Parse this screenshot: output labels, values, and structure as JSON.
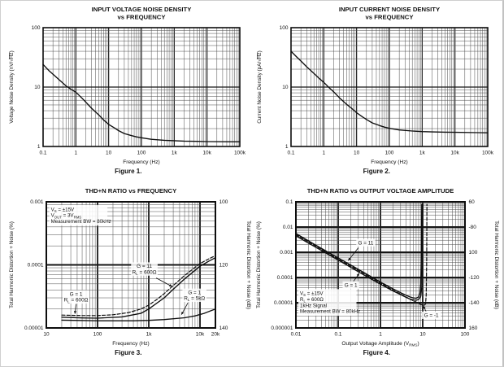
{
  "page": {
    "background": "#ffffff",
    "ink_color": "#111111"
  },
  "chart_data": [
    {
      "type": "line",
      "caption": "Figure 1.",
      "title_lines": [
        "INPUT VOLTAGE NOISE DENSITY",
        "vs FREQUENCY"
      ],
      "xlabel": "Frequency (Hz)",
      "ylabel_left": "Voltage Noise Density (nV/√^Hz^)",
      "x_scale": "log",
      "y_scale": "log",
      "x_min": 0.1,
      "x_max": 100000,
      "y_min": 1,
      "y_max": 100,
      "x_ticks": [
        {
          "v": 0.1,
          "l": "0.1"
        },
        {
          "v": 1,
          "l": "1"
        },
        {
          "v": 10,
          "l": "10"
        },
        {
          "v": 100,
          "l": "100"
        },
        {
          "v": 1000,
          "l": "1k"
        },
        {
          "v": 10000,
          "l": "10k"
        },
        {
          "v": 100000,
          "l": "100k"
        }
      ],
      "y_ticks_left": [
        {
          "v": 1,
          "l": "1"
        },
        {
          "v": 10,
          "l": "10"
        },
        {
          "v": 100,
          "l": "100"
        }
      ],
      "series": [
        {
          "name": "voltage-noise",
          "style": "solid",
          "points": [
            [
              0.1,
              24
            ],
            [
              0.15,
              19
            ],
            [
              0.2,
              16.5
            ],
            [
              0.3,
              13.5
            ],
            [
              0.5,
              10.5
            ],
            [
              0.7,
              9.2
            ],
            [
              1,
              8.2
            ],
            [
              1.5,
              6.6
            ],
            [
              2,
              5.6
            ],
            [
              3,
              4.4
            ],
            [
              5,
              3.4
            ],
            [
              7,
              2.8
            ],
            [
              10,
              2.35
            ],
            [
              15,
              2.05
            ],
            [
              20,
              1.85
            ],
            [
              30,
              1.65
            ],
            [
              50,
              1.52
            ],
            [
              70,
              1.45
            ],
            [
              100,
              1.4
            ],
            [
              200,
              1.32
            ],
            [
              500,
              1.27
            ],
            [
              1000,
              1.25
            ],
            [
              2000,
              1.23
            ],
            [
              5000,
              1.22
            ],
            [
              10000,
              1.21
            ],
            [
              50000,
              1.2
            ],
            [
              100000,
              1.2
            ]
          ]
        }
      ]
    },
    {
      "type": "line",
      "caption": "Figure 2.",
      "title_lines": [
        "INPUT CURRENT NOISE DENSITY",
        "vs FREQUENCY"
      ],
      "xlabel": "Frequency (Hz)",
      "ylabel_left": "Current Noise Density (pA/√^Hz^)",
      "x_scale": "log",
      "y_scale": "log",
      "x_min": 0.1,
      "x_max": 100000,
      "y_min": 1,
      "y_max": 100,
      "x_ticks": [
        {
          "v": 0.1,
          "l": "0.1"
        },
        {
          "v": 1,
          "l": "1"
        },
        {
          "v": 10,
          "l": "10"
        },
        {
          "v": 100,
          "l": "100"
        },
        {
          "v": 1000,
          "l": "1k"
        },
        {
          "v": 10000,
          "l": "10k"
        },
        {
          "v": 100000,
          "l": "100k"
        }
      ],
      "y_ticks_left": [
        {
          "v": 1,
          "l": "1"
        },
        {
          "v": 10,
          "l": "10"
        },
        {
          "v": 100,
          "l": "100"
        }
      ],
      "series": [
        {
          "name": "current-noise",
          "style": "solid",
          "points": [
            [
              0.1,
              40
            ],
            [
              0.15,
              32
            ],
            [
              0.2,
              27.5
            ],
            [
              0.3,
              22
            ],
            [
              0.5,
              17
            ],
            [
              0.7,
              14.2
            ],
            [
              1,
              12
            ],
            [
              1.5,
              9.6
            ],
            [
              2,
              8.3
            ],
            [
              3,
              6.6
            ],
            [
              5,
              5.1
            ],
            [
              7,
              4.4
            ],
            [
              10,
              3.7
            ],
            [
              15,
              3.15
            ],
            [
              20,
              2.85
            ],
            [
              30,
              2.5
            ],
            [
              50,
              2.25
            ],
            [
              70,
              2.12
            ],
            [
              100,
              2.02
            ],
            [
              200,
              1.9
            ],
            [
              500,
              1.82
            ],
            [
              1000,
              1.78
            ],
            [
              2000,
              1.76
            ],
            [
              5000,
              1.74
            ],
            [
              10000,
              1.73
            ],
            [
              50000,
              1.71
            ],
            [
              100000,
              1.7
            ]
          ]
        }
      ]
    },
    {
      "type": "line",
      "caption": "Figure 3.",
      "title_lines": [
        "THD+N RATIO vs FREQUENCY"
      ],
      "xlabel": "Frequency (Hz)",
      "ylabel_left": "Total Harmonic Distortion + Noise (%)",
      "ylabel_right": "Total Harmonic Distortion + Noise (dB)",
      "x_scale": "log",
      "y_scale": "log",
      "x_min": 10,
      "x_max": 20000,
      "y_min": 1e-05,
      "y_max": 0.001,
      "x_ticks": [
        {
          "v": 10,
          "l": "10"
        },
        {
          "v": 100,
          "l": "100"
        },
        {
          "v": 1000,
          "l": "1k"
        },
        {
          "v": 10000,
          "l": "10k"
        },
        {
          "v": 20000,
          "l": "20k"
        }
      ],
      "y_ticks_left": [
        {
          "v": 0.001,
          "l": "0.001"
        },
        {
          "v": 0.0001,
          "l": "0.0001"
        },
        {
          "v": 1e-05,
          "l": "0.00001"
        }
      ],
      "y_ticks_right": [
        {
          "v": 0.001,
          "l": "100"
        },
        {
          "v": 0.0001,
          "l": "120"
        },
        {
          "v": 1e-05,
          "l": "140"
        }
      ],
      "notes": {
        "x": 12.3,
        "y": 0.00086,
        "lines": [
          "V~S~ = ±15V",
          "V~OUT~ = 3V~RMS~",
          "Measurement BW = 80kHz"
        ]
      },
      "labels": [
        {
          "lines": [
            "G = 1",
            "R~L~ = 600Ω"
          ],
          "x": 38,
          "y": 3.1e-05,
          "arrow": [
            38,
            2.4e-05,
            36,
            1.65e-05
          ]
        },
        {
          "lines": [
            "G = 11",
            "R~L~ = 600Ω"
          ],
          "x": 820,
          "y": 8.6e-05,
          "arrow": [
            1400,
            6.2e-05,
            2900,
            4.5e-05
          ]
        },
        {
          "lines": [
            "G = 1",
            "R~L~ = 5kΩ"
          ],
          "x": 7800,
          "y": 3.3e-05,
          "arrow": [
            5800,
            2.5e-05,
            4300,
            1.6e-05
          ]
        }
      ],
      "series": [
        {
          "name": "g11-rl600",
          "style": "dashed",
          "points": [
            [
              20,
              1.6e-05
            ],
            [
              50,
              1.57e-05
            ],
            [
              100,
              1.57e-05
            ],
            [
              200,
              1.62e-05
            ],
            [
              400,
              1.75e-05
            ],
            [
              700,
              2e-05
            ],
            [
              1000,
              2.3e-05
            ],
            [
              1500,
              2.9e-05
            ],
            [
              2000,
              3.5e-05
            ],
            [
              3000,
              4.7e-05
            ],
            [
              5000,
              6.8e-05
            ],
            [
              7000,
              8.4e-05
            ],
            [
              10000,
              0.000105
            ],
            [
              15000,
              0.000125
            ],
            [
              20000,
              0.00014
            ]
          ]
        },
        {
          "name": "g1-rl600",
          "style": "solid",
          "points": [
            [
              20,
              1.48e-05
            ],
            [
              50,
              1.44e-05
            ],
            [
              100,
              1.43e-05
            ],
            [
              300,
              1.5e-05
            ],
            [
              700,
              1.7e-05
            ],
            [
              1000,
              2e-05
            ],
            [
              2000,
              3e-05
            ],
            [
              3000,
              4.1e-05
            ],
            [
              5000,
              6e-05
            ],
            [
              7000,
              7.5e-05
            ],
            [
              10000,
              9.5e-05
            ],
            [
              15000,
              0.000115
            ],
            [
              20000,
              0.00013
            ]
          ]
        },
        {
          "name": "g1-rl5k",
          "style": "solid",
          "points": [
            [
              20,
              1.33e-05
            ],
            [
              100,
              1.3e-05
            ],
            [
              500,
              1.3e-05
            ],
            [
              1000,
              1.32e-05
            ],
            [
              2000,
              1.36e-05
            ],
            [
              5000,
              1.45e-05
            ],
            [
              8000,
              1.55e-05
            ],
            [
              12000,
              1.7e-05
            ],
            [
              20000,
              2e-05
            ]
          ]
        }
      ]
    },
    {
      "type": "line",
      "caption": "Figure 4.",
      "title_lines": [
        "THD+N RATIO vs OUTPUT VOLTAGE AMPLITUDE"
      ],
      "xlabel": "Output Voltage Amplitude (V~RMS~)",
      "ylabel_left": "Total Harmonic Distortion + Noise (%)",
      "ylabel_right": "Total Harmonic Distortion + Noise (dB)",
      "x_scale": "log",
      "y_scale": "log",
      "x_min": 0.01,
      "x_max": 100,
      "y_min": 1e-06,
      "y_max": 0.1,
      "x_ticks": [
        {
          "v": 0.01,
          "l": "0.01"
        },
        {
          "v": 0.1,
          "l": "0.1"
        },
        {
          "v": 1,
          "l": "1"
        },
        {
          "v": 10,
          "l": "10"
        },
        {
          "v": 100,
          "l": "100"
        }
      ],
      "y_ticks_left": [
        {
          "v": 0.1,
          "l": "0.1"
        },
        {
          "v": 0.01,
          "l": "0.01"
        },
        {
          "v": 0.001,
          "l": "0.001"
        },
        {
          "v": 0.0001,
          "l": "0.0001"
        },
        {
          "v": 1e-05,
          "l": "0.00001"
        },
        {
          "v": 1e-06,
          "l": "0.000001"
        }
      ],
      "y_ticks_right": [
        {
          "v": 0.1,
          "l": "60"
        },
        {
          "v": 0.01,
          "l": "-80"
        },
        {
          "v": 0.001,
          "l": "100"
        },
        {
          "v": 0.0001,
          "l": "-120"
        },
        {
          "v": 1e-05,
          "l": "-140"
        },
        {
          "v": 1e-06,
          "l": "160"
        }
      ],
      "notes": {
        "x": 0.0125,
        "y": 3.2e-05,
        "lines": [
          "V~S~ = ±15V",
          "R~L~ = 600Ω",
          "1kHz Signal",
          "Measurement BW = 80kHz"
        ]
      },
      "labels": [
        {
          "lines": [
            "G = 11"
          ],
          "x": 0.45,
          "y": 0.0024,
          "arrow": [
            0.3,
            0.0015,
            0.17,
            0.00045
          ]
        },
        {
          "lines": [
            "G = 1"
          ],
          "x": 0.2,
          "y": 5e-05,
          "arrow": [
            0.23,
            7e-05,
            0.32,
            0.00015
          ]
        },
        {
          "lines": [
            "G = -1"
          ],
          "x": 16,
          "y": 3.2e-06,
          "arrow": [
            12,
            4.5e-06,
            10.2,
            7.8e-06
          ]
        }
      ],
      "series": [
        {
          "name": "g11",
          "style": "solid",
          "points": [
            [
              0.01,
              0.0055
            ],
            [
              0.03,
              0.0019
            ],
            [
              0.1,
              0.0006
            ],
            [
              0.3,
              0.00021
            ],
            [
              1,
              6.6e-05
            ],
            [
              2,
              3.5e-05
            ],
            [
              3,
              2.5e-05
            ],
            [
              4,
              2e-05
            ],
            [
              5,
              1.7e-05
            ],
            [
              6,
              1.55e-05
            ],
            [
              7,
              1.5e-05
            ],
            [
              8,
              1.7e-05
            ],
            [
              8.6,
              2.4e-05
            ],
            [
              9.0,
              6e-05
            ],
            [
              9.3,
              0.0008
            ],
            [
              9.5,
              0.08
            ]
          ]
        },
        {
          "name": "g1",
          "style": "solid",
          "points": [
            [
              0.01,
              0.0045
            ],
            [
              0.03,
              0.00155
            ],
            [
              0.1,
              0.00049
            ],
            [
              0.3,
              0.00017
            ],
            [
              1,
              5.4e-05
            ],
            [
              2,
              2.9e-05
            ],
            [
              3,
              2.1e-05
            ],
            [
              4,
              1.65e-05
            ],
            [
              5,
              1.4e-05
            ],
            [
              6,
              1.3e-05
            ],
            [
              7,
              1.25e-05
            ],
            [
              8,
              1.35e-05
            ],
            [
              9,
              1.8e-05
            ],
            [
              9.5,
              4e-05
            ],
            [
              9.8,
              0.0006
            ],
            [
              10,
              0.08
            ]
          ]
        },
        {
          "name": "g-minus1",
          "style": "dashed",
          "points": [
            [
              0.01,
              0.005
            ],
            [
              0.1,
              0.00054
            ],
            [
              1,
              6e-05
            ],
            [
              2,
              3.1e-05
            ],
            [
              3,
              2.2e-05
            ],
            [
              5,
              1.4e-05
            ],
            [
              7,
              1.05e-05
            ],
            [
              9,
              8.5e-06
            ],
            [
              10,
              8e-06
            ],
            [
              11,
              8e-06
            ],
            [
              11.7,
              9e-06
            ],
            [
              12.1,
              2e-05
            ],
            [
              12.4,
              0.0005
            ],
            [
              12.6,
              0.08
            ]
          ]
        }
      ]
    }
  ]
}
